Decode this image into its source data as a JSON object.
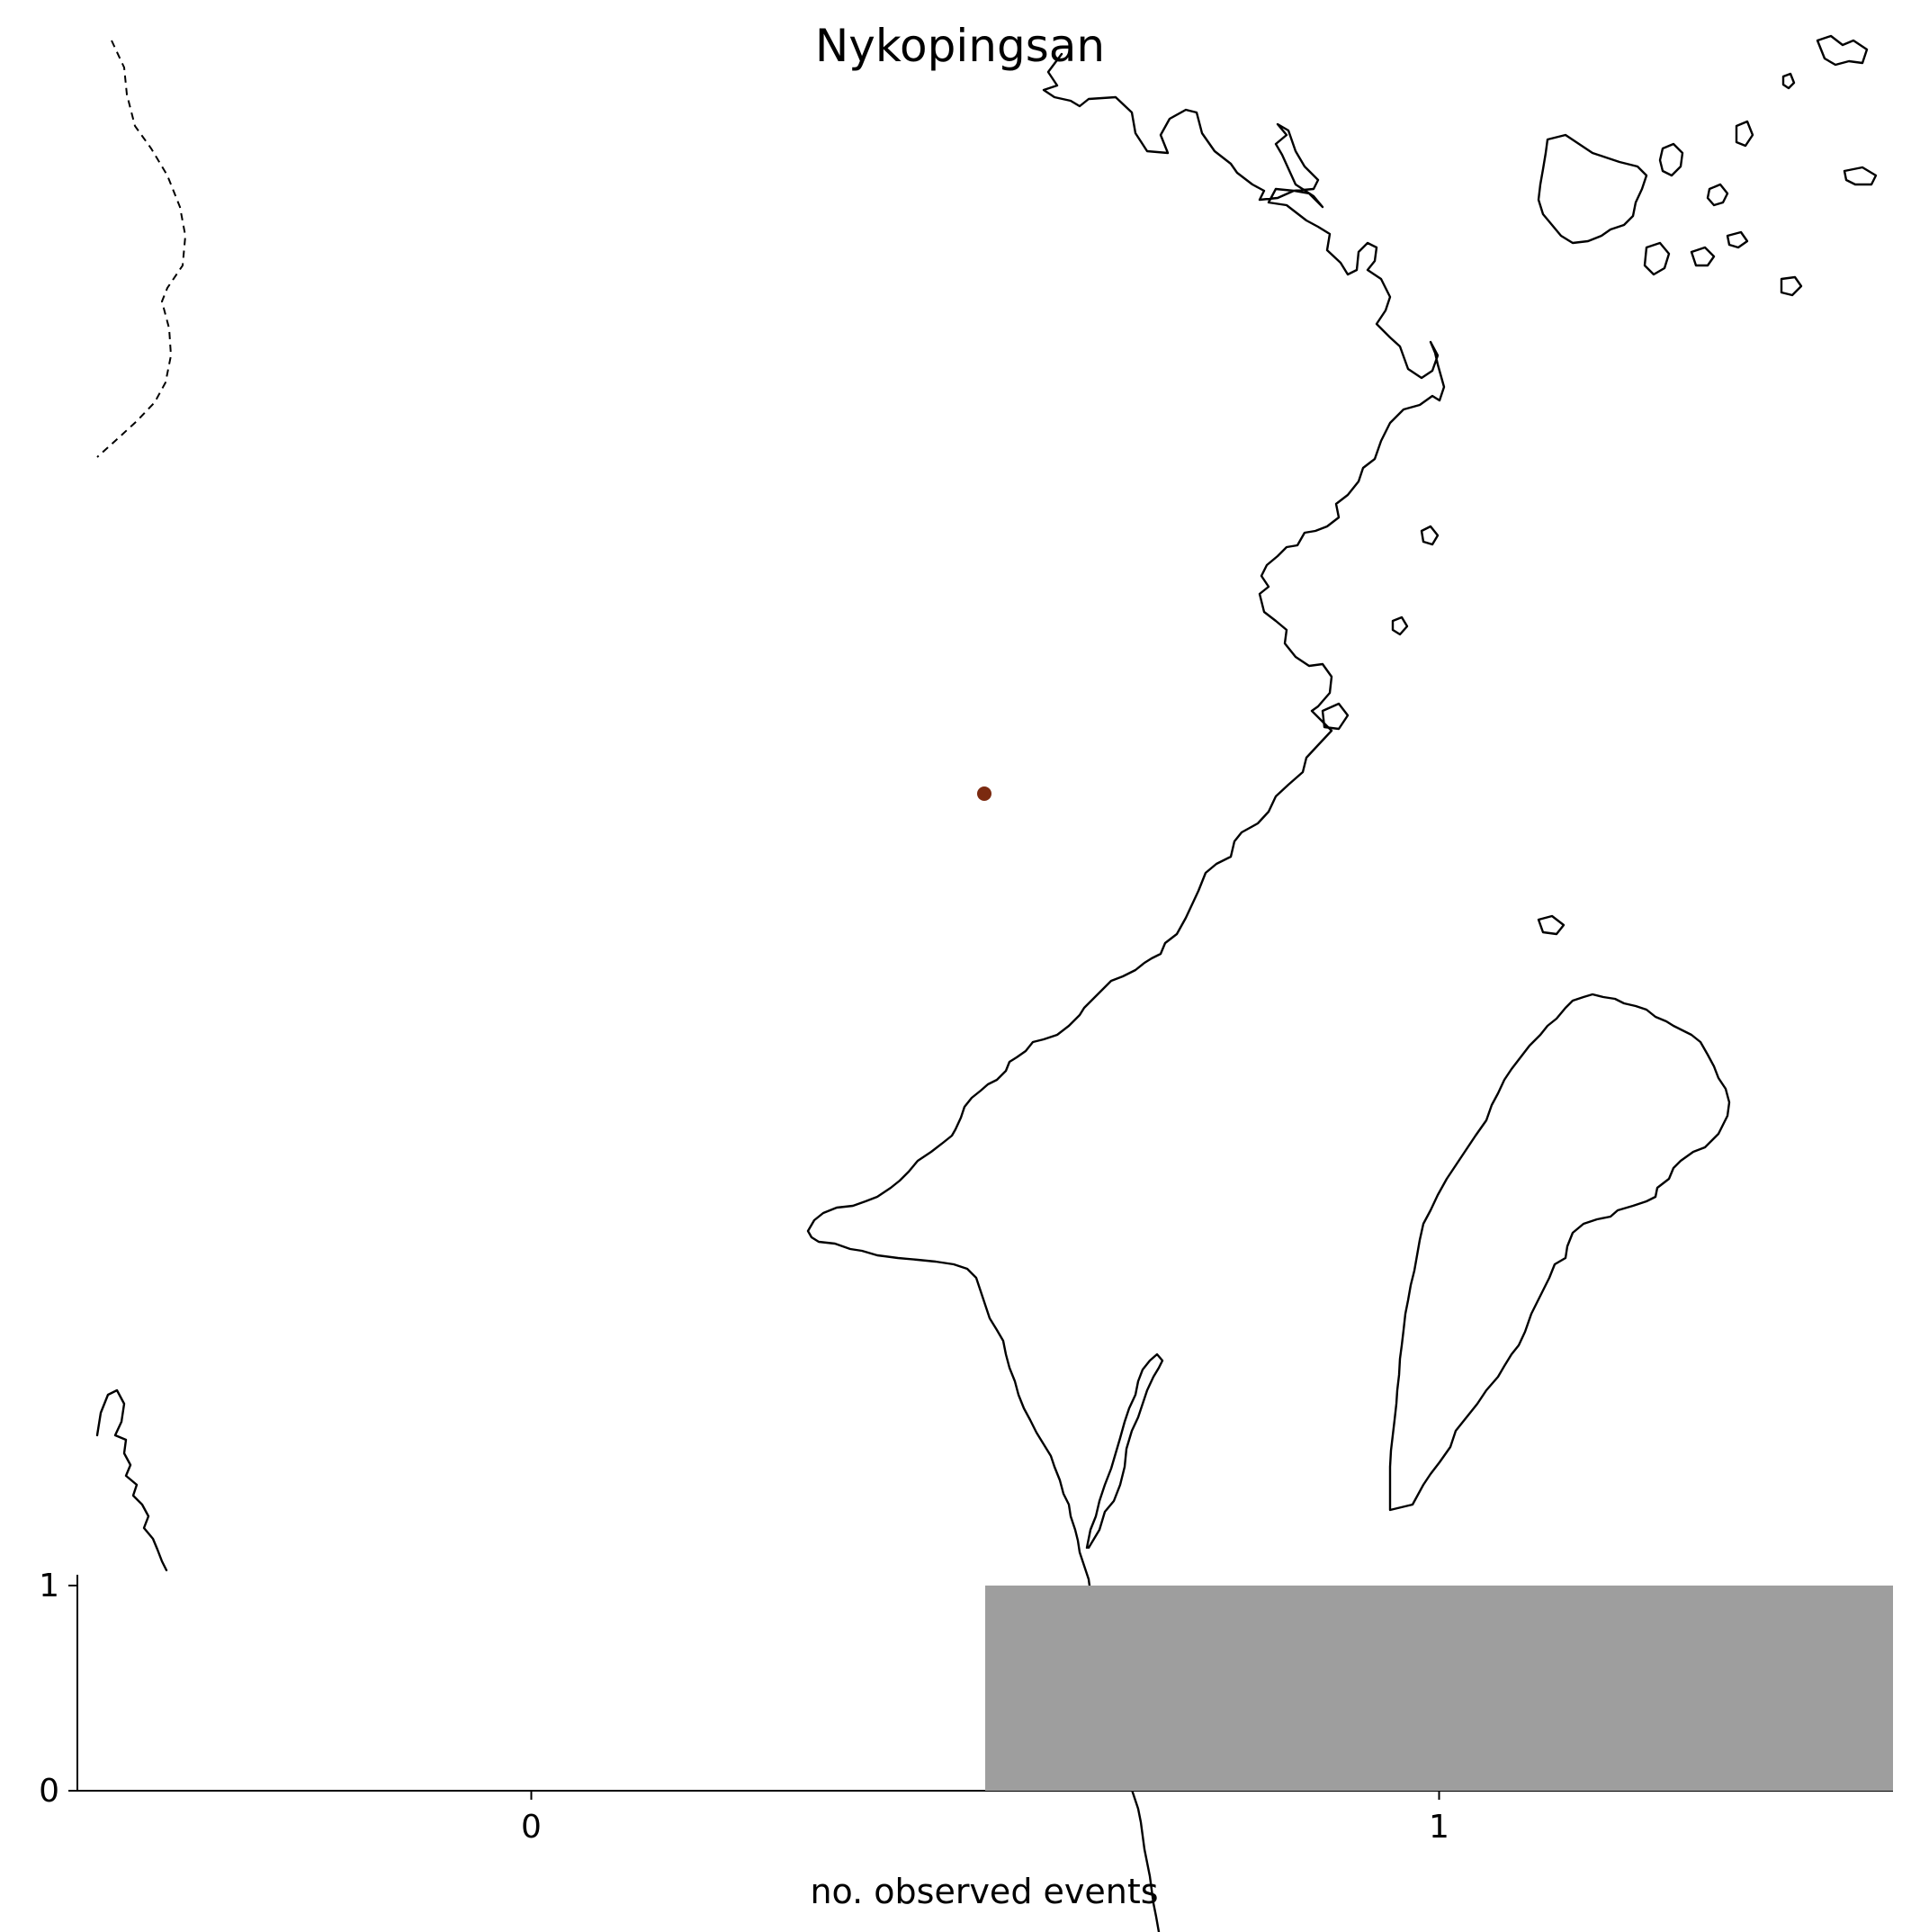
{
  "map": {
    "title": "Nykopingsan",
    "marker_color": "#7b2a10",
    "coastline_color": "#000000"
  },
  "chart_data": {
    "type": "bar",
    "categories": [
      "0",
      "1"
    ],
    "values": [
      0,
      1
    ],
    "title": "",
    "xlabel": "no. observed events",
    "ylabel": "",
    "ylim": [
      0,
      1
    ],
    "yticks": [
      "0",
      "1"
    ],
    "xticks": [
      "0",
      "1"
    ],
    "bar_color": "#9e9e9e"
  }
}
